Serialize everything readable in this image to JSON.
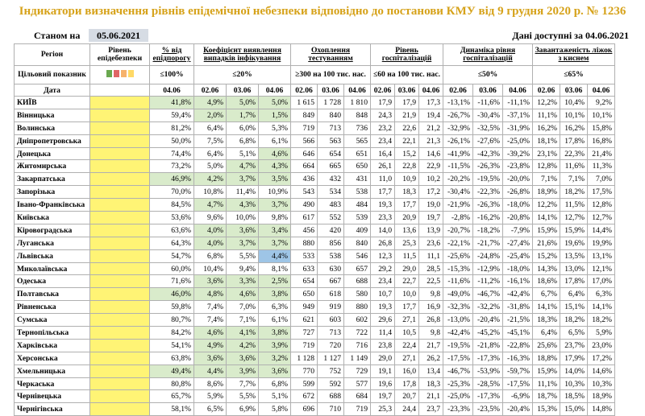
{
  "title": "Індикатори визначення рівнів епідемічної небезпеки відповідно до постанови КМУ від 9 грудня 2020 р. № 1236",
  "status_label": "Станом на",
  "status_date": "05.06.2021",
  "available": "Дані доступні за 04.06.2021",
  "headers": {
    "region": "Регіон",
    "level": "Рівень епідебезпеки",
    "pct_threshold": "% від епідпорогу",
    "detect": "Коефіцієнт виявлення випадків інфікування",
    "testing": "Охоплення тестуванням",
    "hosp": "Рівень госпіталізацій",
    "dyn": "Динаміка рівня госпіталізацій",
    "oxygen": "Завантаженість ліжок з киснем"
  },
  "target": {
    "label": "Цільовий показник",
    "pct": "≤100%",
    "detect": "≤20%",
    "testing": "≥300 на 100 тис. нас.",
    "hosp": "≤60 на 100 тис. нас.",
    "dyn": "≤50%",
    "oxygen": "≤65%"
  },
  "level_colors": [
    "#6aa84f",
    "#e06666",
    "#f6b26b",
    "#ffd966"
  ],
  "date_label": "Дата",
  "dates": {
    "pct": "04.06",
    "d1": "02.06",
    "d2": "03.06",
    "d3": "04.06"
  },
  "rows": [
    {
      "name": "КИЇВ",
      "pct": "41,8%",
      "det": [
        "4,9%",
        "5,0%",
        "5,0%"
      ],
      "test": [
        "1 615",
        "1 728",
        "1 810"
      ],
      "hosp": [
        "17,9",
        "17,9",
        "17,3"
      ],
      "dyn": [
        "-13,1%",
        "-11,6%",
        "-11,1%"
      ],
      "oxy": [
        "12,2%",
        "10,4%",
        "9,2%"
      ],
      "g": true,
      "gd": [
        1,
        1,
        1
      ]
    },
    {
      "name": "Вінницька",
      "pct": "59,4%",
      "det": [
        "2,0%",
        "1,7%",
        "1,5%"
      ],
      "test": [
        "849",
        "840",
        "848"
      ],
      "hosp": [
        "24,3",
        "21,9",
        "19,4"
      ],
      "dyn": [
        "-26,7%",
        "-30,4%",
        "-37,1%"
      ],
      "oxy": [
        "11,1%",
        "10,1%",
        "10,1%"
      ],
      "g": false,
      "gd": [
        1,
        1,
        1
      ]
    },
    {
      "name": "Волинська",
      "pct": "81,2%",
      "det": [
        "6,4%",
        "6,0%",
        "5,3%"
      ],
      "test": [
        "719",
        "713",
        "736"
      ],
      "hosp": [
        "23,2",
        "22,6",
        "21,2"
      ],
      "dyn": [
        "-32,9%",
        "-32,5%",
        "-31,9%"
      ],
      "oxy": [
        "16,2%",
        "16,2%",
        "15,8%"
      ],
      "g": false,
      "gd": [
        0,
        0,
        0
      ]
    },
    {
      "name": "Дніпропетровська",
      "pct": "50,0%",
      "det": [
        "7,5%",
        "6,8%",
        "6,1%"
      ],
      "test": [
        "566",
        "563",
        "565"
      ],
      "hosp": [
        "23,4",
        "22,1",
        "21,3"
      ],
      "dyn": [
        "-26,1%",
        "-27,6%",
        "-25,0%"
      ],
      "oxy": [
        "18,1%",
        "17,8%",
        "16,8%"
      ],
      "g": false,
      "gd": [
        0,
        0,
        0
      ]
    },
    {
      "name": "Донецька",
      "pct": "74,4%",
      "det": [
        "6,4%",
        "5,1%",
        "4,6%"
      ],
      "test": [
        "646",
        "654",
        "651"
      ],
      "hosp": [
        "16,4",
        "15,2",
        "14,6"
      ],
      "dyn": [
        "-41,9%",
        "-42,3%",
        "-39,2%"
      ],
      "oxy": [
        "23,1%",
        "22,3%",
        "21,4%"
      ],
      "g": false,
      "gd": [
        0,
        0,
        1
      ]
    },
    {
      "name": "Житомирська",
      "pct": "73,2%",
      "det": [
        "5,0%",
        "4,7%",
        "4,3%"
      ],
      "test": [
        "664",
        "665",
        "650"
      ],
      "hosp": [
        "26,1",
        "22,8",
        "22,9"
      ],
      "dyn": [
        "-11,5%",
        "-26,3%",
        "-23,8%"
      ],
      "oxy": [
        "12,8%",
        "11,6%",
        "11,3%"
      ],
      "g": false,
      "gd": [
        0,
        1,
        1
      ]
    },
    {
      "name": "Закарпатська",
      "pct": "46,9%",
      "det": [
        "4,2%",
        "3,7%",
        "3,5%"
      ],
      "test": [
        "436",
        "432",
        "431"
      ],
      "hosp": [
        "11,0",
        "10,9",
        "10,2"
      ],
      "dyn": [
        "-20,2%",
        "-19,5%",
        "-20,0%"
      ],
      "oxy": [
        "7,1%",
        "7,1%",
        "7,0%"
      ],
      "g": true,
      "gd": [
        1,
        1,
        1
      ]
    },
    {
      "name": "Запорізька",
      "pct": "70,0%",
      "det": [
        "10,8%",
        "11,4%",
        "10,9%"
      ],
      "test": [
        "543",
        "534",
        "538"
      ],
      "hosp": [
        "17,7",
        "18,3",
        "17,2"
      ],
      "dyn": [
        "-30,4%",
        "-22,3%",
        "-26,8%"
      ],
      "oxy": [
        "18,9%",
        "18,2%",
        "17,5%"
      ],
      "g": false,
      "gd": [
        0,
        0,
        0
      ]
    },
    {
      "name": "Івано-Франківська",
      "pct": "84,5%",
      "det": [
        "4,7%",
        "4,3%",
        "3,7%"
      ],
      "test": [
        "490",
        "483",
        "484"
      ],
      "hosp": [
        "19,3",
        "17,7",
        "19,0"
      ],
      "dyn": [
        "-21,9%",
        "-26,3%",
        "-18,0%"
      ],
      "oxy": [
        "12,2%",
        "11,5%",
        "12,8%"
      ],
      "g": false,
      "gd": [
        1,
        1,
        1
      ]
    },
    {
      "name": "Київська",
      "pct": "53,6%",
      "det": [
        "9,6%",
        "10,0%",
        "9,8%"
      ],
      "test": [
        "617",
        "552",
        "539"
      ],
      "hosp": [
        "23,3",
        "20,9",
        "19,7"
      ],
      "dyn": [
        "-2,8%",
        "-16,2%",
        "-20,8%"
      ],
      "oxy": [
        "14,1%",
        "12,7%",
        "12,7%"
      ],
      "g": false,
      "gd": [
        0,
        0,
        0
      ]
    },
    {
      "name": "Кіровоградська",
      "pct": "63,6%",
      "det": [
        "4,0%",
        "3,6%",
        "3,4%"
      ],
      "test": [
        "456",
        "420",
        "409"
      ],
      "hosp": [
        "14,0",
        "13,6",
        "13,9"
      ],
      "dyn": [
        "-20,7%",
        "-18,2%",
        "-7,9%"
      ],
      "oxy": [
        "15,9%",
        "15,9%",
        "14,4%"
      ],
      "g": false,
      "gd": [
        1,
        1,
        1
      ]
    },
    {
      "name": "Луганська",
      "pct": "64,3%",
      "det": [
        "4,0%",
        "3,7%",
        "3,7%"
      ],
      "test": [
        "880",
        "856",
        "840"
      ],
      "hosp": [
        "26,8",
        "25,3",
        "23,6"
      ],
      "dyn": [
        "-22,1%",
        "-21,7%",
        "-27,4%"
      ],
      "oxy": [
        "21,6%",
        "19,6%",
        "19,9%"
      ],
      "g": false,
      "gd": [
        1,
        1,
        1
      ]
    },
    {
      "name": "Львівська",
      "pct": "54,7%",
      "det": [
        "6,8%",
        "5,5%",
        "4,4%"
      ],
      "test": [
        "533",
        "538",
        "546"
      ],
      "hosp": [
        "12,3",
        "11,5",
        "11,1"
      ],
      "dyn": [
        "-25,6%",
        "-24,8%",
        "-25,4%"
      ],
      "oxy": [
        "15,2%",
        "13,5%",
        "13,1%"
      ],
      "g": false,
      "gd": [
        0,
        0,
        2
      ]
    },
    {
      "name": "Миколаївська",
      "pct": "60,0%",
      "det": [
        "10,4%",
        "9,4%",
        "8,1%"
      ],
      "test": [
        "633",
        "630",
        "657"
      ],
      "hosp": [
        "29,2",
        "29,0",
        "28,5"
      ],
      "dyn": [
        "-15,3%",
        "-12,9%",
        "-18,0%"
      ],
      "oxy": [
        "14,3%",
        "13,0%",
        "12,1%"
      ],
      "g": false,
      "gd": [
        0,
        0,
        0
      ]
    },
    {
      "name": "Одеська",
      "pct": "71,6%",
      "det": [
        "3,6%",
        "3,3%",
        "2,5%"
      ],
      "test": [
        "654",
        "667",
        "688"
      ],
      "hosp": [
        "23,4",
        "22,7",
        "22,5"
      ],
      "dyn": [
        "-11,6%",
        "-11,2%",
        "-16,1%"
      ],
      "oxy": [
        "18,6%",
        "17,8%",
        "17,0%"
      ],
      "g": false,
      "gd": [
        1,
        1,
        1
      ]
    },
    {
      "name": "Полтавська",
      "pct": "46,0%",
      "det": [
        "4,8%",
        "4,6%",
        "3,8%"
      ],
      "test": [
        "650",
        "618",
        "580"
      ],
      "hosp": [
        "10,7",
        "10,0",
        "9,8"
      ],
      "dyn": [
        "-49,0%",
        "-46,7%",
        "-42,4%"
      ],
      "oxy": [
        "6,7%",
        "6,4%",
        "6,3%"
      ],
      "g": true,
      "gd": [
        1,
        1,
        1
      ]
    },
    {
      "name": "Рівненська",
      "pct": "59,8%",
      "det": [
        "7,4%",
        "7,0%",
        "6,3%"
      ],
      "test": [
        "949",
        "919",
        "880"
      ],
      "hosp": [
        "19,3",
        "17,7",
        "16,9"
      ],
      "dyn": [
        "-32,3%",
        "-32,2%",
        "-31,8%"
      ],
      "oxy": [
        "14,1%",
        "15,1%",
        "14,1%"
      ],
      "g": false,
      "gd": [
        0,
        0,
        0
      ]
    },
    {
      "name": "Сумська",
      "pct": "80,7%",
      "det": [
        "7,4%",
        "7,1%",
        "6,1%"
      ],
      "test": [
        "621",
        "603",
        "602"
      ],
      "hosp": [
        "29,6",
        "27,1",
        "26,8"
      ],
      "dyn": [
        "-13,0%",
        "-20,4%",
        "-21,5%"
      ],
      "oxy": [
        "18,3%",
        "18,2%",
        "18,2%"
      ],
      "g": false,
      "gd": [
        0,
        0,
        0
      ]
    },
    {
      "name": "Тернопільська",
      "pct": "84,2%",
      "det": [
        "4,6%",
        "4,1%",
        "3,8%"
      ],
      "test": [
        "727",
        "713",
        "722"
      ],
      "hosp": [
        "11,4",
        "10,5",
        "9,8"
      ],
      "dyn": [
        "-42,4%",
        "-45,2%",
        "-45,1%"
      ],
      "oxy": [
        "6,4%",
        "6,5%",
        "5,9%"
      ],
      "g": false,
      "gd": [
        1,
        1,
        1
      ]
    },
    {
      "name": "Харківська",
      "pct": "54,1%",
      "det": [
        "4,9%",
        "4,2%",
        "3,9%"
      ],
      "test": [
        "719",
        "720",
        "716"
      ],
      "hosp": [
        "23,8",
        "22,4",
        "21,7"
      ],
      "dyn": [
        "-19,5%",
        "-21,8%",
        "-22,8%"
      ],
      "oxy": [
        "25,6%",
        "23,7%",
        "23,0%"
      ],
      "g": false,
      "gd": [
        1,
        1,
        1
      ]
    },
    {
      "name": "Херсонська",
      "pct": "63,8%",
      "det": [
        "3,6%",
        "3,6%",
        "3,2%"
      ],
      "test": [
        "1 128",
        "1 127",
        "1 149"
      ],
      "hosp": [
        "29,0",
        "27,1",
        "26,2"
      ],
      "dyn": [
        "-17,5%",
        "-17,3%",
        "-16,3%"
      ],
      "oxy": [
        "18,8%",
        "17,9%",
        "17,2%"
      ],
      "g": false,
      "gd": [
        1,
        1,
        1
      ]
    },
    {
      "name": "Хмельницька",
      "pct": "49,4%",
      "det": [
        "4,4%",
        "3,9%",
        "3,6%"
      ],
      "test": [
        "770",
        "752",
        "729"
      ],
      "hosp": [
        "19,1",
        "16,0",
        "13,4"
      ],
      "dyn": [
        "-46,7%",
        "-53,9%",
        "-59,7%"
      ],
      "oxy": [
        "15,9%",
        "14,0%",
        "14,6%"
      ],
      "g": true,
      "gd": [
        1,
        1,
        1
      ]
    },
    {
      "name": "Черкаська",
      "pct": "80,8%",
      "det": [
        "8,6%",
        "7,7%",
        "6,8%"
      ],
      "test": [
        "599",
        "592",
        "577"
      ],
      "hosp": [
        "19,6",
        "17,8",
        "18,3"
      ],
      "dyn": [
        "-25,3%",
        "-28,5%",
        "-17,5%"
      ],
      "oxy": [
        "11,1%",
        "10,3%",
        "10,3%"
      ],
      "g": false,
      "gd": [
        0,
        0,
        0
      ]
    },
    {
      "name": "Чернівецька",
      "pct": "65,7%",
      "det": [
        "5,9%",
        "5,5%",
        "5,1%"
      ],
      "test": [
        "672",
        "688",
        "684"
      ],
      "hosp": [
        "19,7",
        "20,7",
        "21,1"
      ],
      "dyn": [
        "-25,0%",
        "-17,3%",
        "-6,9%"
      ],
      "oxy": [
        "18,7%",
        "18,5%",
        "18,9%"
      ],
      "g": false,
      "gd": [
        0,
        0,
        0
      ]
    },
    {
      "name": "Чернігівська",
      "pct": "58,1%",
      "det": [
        "6,5%",
        "6,9%",
        "5,8%"
      ],
      "test": [
        "696",
        "710",
        "719"
      ],
      "hosp": [
        "25,3",
        "24,4",
        "23,7"
      ],
      "dyn": [
        "-23,3%",
        "-23,5%",
        "-20,4%"
      ],
      "oxy": [
        "15,3%",
        "15,0%",
        "14,8%"
      ],
      "g": false,
      "gd": [
        0,
        0,
        0
      ]
    }
  ]
}
